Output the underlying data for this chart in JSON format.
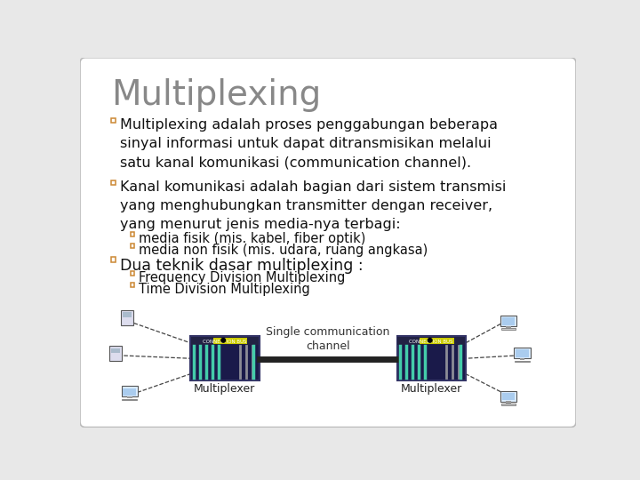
{
  "title": "Multiplexing",
  "title_color": "#888888",
  "title_fontsize": 28,
  "background_color": "#e8e8e8",
  "bullet_color": "#cc8833",
  "text_color": "#111111",
  "bullet1": "Multiplexing adalah proses penggabungan beberapa\nsinyal informasi untuk dapat ditransmisikan melalui\nsatu kanal komunikasi (communication channel).",
  "bullet2": "Kanal komunikasi adalah bagian dari sistem transmisi\nyang menghubungkan transmitter dengan receiver,\nyang menurut jenis media-nya terbagi:",
  "sub2a": "media fisik (mis. kabel, fiber optik)",
  "sub2b": "media non fisik (mis. udara, ruang angkasa)",
  "bullet3": "Dua teknik dasar multiplexing :",
  "sub3a": "Frequency Division Multiplexing",
  "sub3b": "Time Division Multiplexing",
  "main_fontsize": 11.5,
  "sub_fontsize": 10.5,
  "diagram_label_left": "Multiplexer",
  "diagram_label_right": "Multiplexer",
  "diagram_channel": "Single communication\nchannel",
  "mux_dark": "#1a1a4a",
  "mux_yellow": "#cccc00",
  "mux_green": "#44ccaa",
  "mux_gray": "#aaaaaa",
  "channel_line_color": "#222222"
}
